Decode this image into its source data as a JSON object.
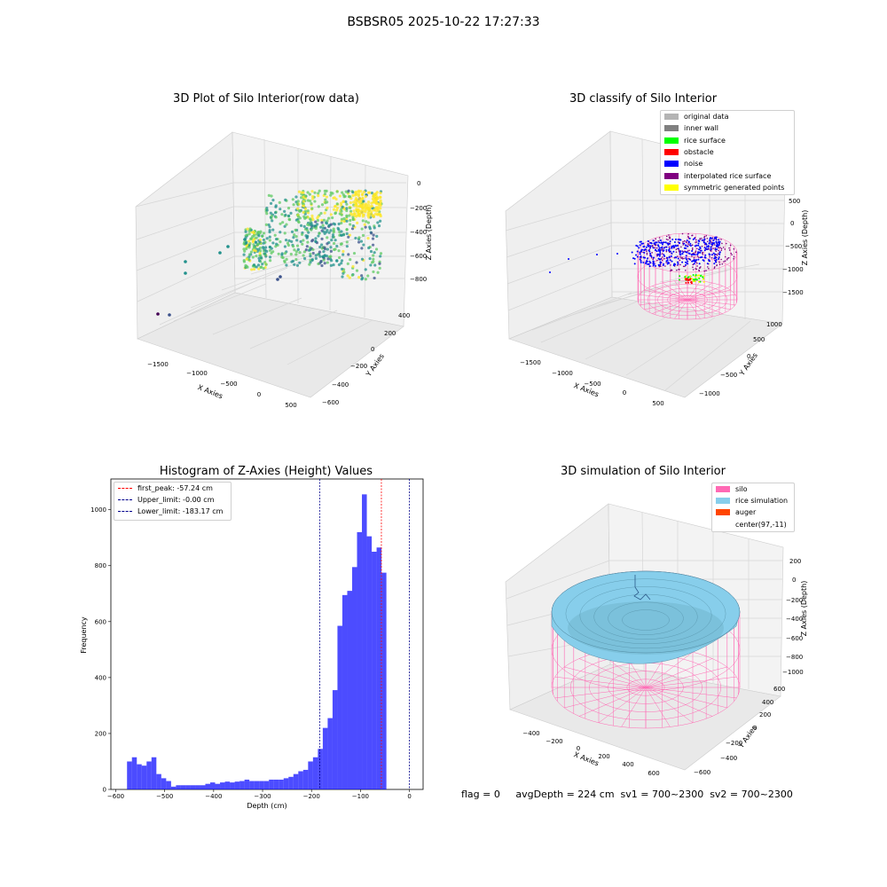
{
  "suptitle": "BSBSR05 2025-10-22 17:27:33",
  "footer": {
    "text": "flag = 0     avgDepth = 224 cm  sv1 = 700~2300  sv2 = 700~2300"
  },
  "colors": {
    "hist_bar": "#0000ff",
    "first_peak_line": "#ff0000",
    "limit_line": "#00008b",
    "silo": "#ff69b4",
    "rice": "#87ceeb",
    "auger": "#ff4500",
    "pane_face": "#f2f2f2",
    "grid": "#d8d8d8"
  },
  "chart_data": [
    {
      "type": "scatter",
      "title": "3D Plot of Silo Interior(row data)",
      "xlabel": "X Axies",
      "ylabel": "Y Axies",
      "zlabel": "Z Axies (Depth)",
      "xticks": [
        "−1500",
        "−1000",
        "−500",
        "0",
        "500"
      ],
      "yticks": [
        "−600",
        "−400",
        "−200",
        "0",
        "200",
        "400"
      ],
      "zticks": [
        "0",
        "−200",
        "−400",
        "−600",
        "−800"
      ],
      "xlim": [
        -1800,
        600
      ],
      "ylim": [
        -650,
        450
      ],
      "zlim": [
        -900,
        50
      ],
      "grid": true,
      "colormap": "viridis"
    },
    {
      "type": "scatter",
      "title": "3D classify of Silo Interior",
      "xlabel": "X Axies",
      "ylabel": "Y Axies",
      "zlabel": "Z Axies (Depth)",
      "xticks": [
        "−1500",
        "−1000",
        "−500",
        "0",
        "500"
      ],
      "yticks": [
        "−1000",
        "−500",
        "0",
        "500",
        "1000"
      ],
      "zticks": [
        "500",
        "0",
        "−500",
        "−1000",
        "−1500"
      ],
      "legend": [
        {
          "label": "original data",
          "color": "#b4b4b4"
        },
        {
          "label": "inner wall",
          "color": "#808080"
        },
        {
          "label": "rice surface",
          "color": "#00ff00"
        },
        {
          "label": "obstacle",
          "color": "#ff0000"
        },
        {
          "label": "noise",
          "color": "#0000ff"
        },
        {
          "label": "interpolated rice surface",
          "color": "#800080"
        },
        {
          "label": "symmetric generated points",
          "color": "#ffff00"
        }
      ],
      "legend_position": "upper right",
      "grid": true
    },
    {
      "type": "bar",
      "title": "Histogram of Z-Axies (Height) Values",
      "xlabel": "Depth (cm)",
      "ylabel": "Frequency",
      "xlim": [
        -610,
        28
      ],
      "ylim": [
        0,
        1110
      ],
      "xticks": [
        -600,
        -500,
        -400,
        -300,
        -200,
        -100,
        0
      ],
      "yticks": [
        0,
        200,
        400,
        600,
        800,
        1000
      ],
      "bin_width": 10,
      "bins_start": [
        -577,
        -567,
        -557,
        -547,
        -537,
        -527,
        -517,
        -507,
        -497,
        -487,
        -477,
        -467,
        -457,
        -447,
        -437,
        -427,
        -417,
        -407,
        -397,
        -387,
        -377,
        -367,
        -357,
        -347,
        -337,
        -327,
        -317,
        -307,
        -297,
        -287,
        -277,
        -267,
        -257,
        -247,
        -237,
        -227,
        -217,
        -207,
        -197,
        -187,
        -177,
        -167,
        -157,
        -147,
        -137,
        -127,
        -117,
        -107,
        -97,
        -87,
        -77,
        -67,
        -57,
        -47,
        -37,
        -27,
        -17,
        -7
      ],
      "values": [
        100,
        115,
        90,
        85,
        100,
        115,
        55,
        40,
        30,
        10,
        15,
        15,
        15,
        15,
        15,
        15,
        20,
        25,
        20,
        25,
        28,
        25,
        28,
        30,
        35,
        30,
        30,
        30,
        30,
        35,
        35,
        35,
        40,
        45,
        55,
        65,
        70,
        100,
        115,
        145,
        220,
        255,
        355,
        585,
        695,
        710,
        795,
        920,
        1055,
        905,
        850,
        865,
        775,
        0,
        0,
        0,
        0,
        0
      ],
      "vlines": [
        {
          "label": "first_peak: -57.24 cm",
          "x": -57.24,
          "color": "#ff0000"
        },
        {
          "label": "Upper_limit: -0.00 cm",
          "x": 0,
          "color": "#00008b"
        },
        {
          "label": "Lower_limit: -183.17 cm",
          "x": -183.17,
          "color": "#00008b"
        }
      ],
      "legend_position": "upper left"
    },
    {
      "type": "scatter",
      "title": "3D simulation of Silo Interior",
      "xlabel": "X Axies",
      "ylabel": "Y Axies",
      "zlabel": "Z Axies (Depth)",
      "xticks": [
        "−400",
        "−200",
        "0",
        "200",
        "400",
        "600"
      ],
      "yticks": [
        "−600",
        "−400",
        "−200",
        "0",
        "200",
        "400",
        "600"
      ],
      "zticks": [
        "200",
        "0",
        "−200",
        "−400",
        "−600",
        "−800",
        "−1000"
      ],
      "legend": [
        {
          "label": "silo",
          "color": "#ff69b4"
        },
        {
          "label": "rice simulation",
          "color": "#87ceeb"
        },
        {
          "label": "auger",
          "color": "#ff4500"
        },
        {
          "label": "center(97,-11)",
          "color": ""
        }
      ],
      "legend_position": "upper right",
      "grid": true
    }
  ]
}
